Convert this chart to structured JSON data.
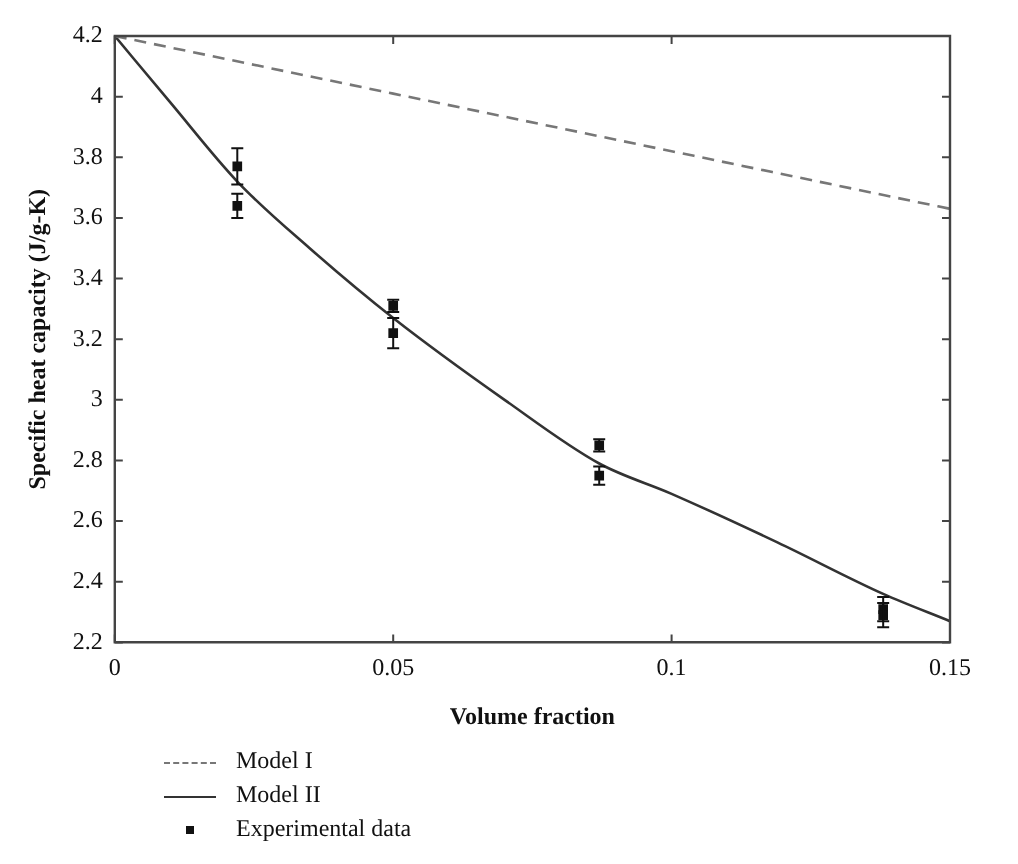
{
  "chart_data": {
    "type": "line",
    "xlabel": "Volume fraction",
    "ylabel": "Specific heat capacity (J/g-K)",
    "xlim": [
      0,
      0.15
    ],
    "xticks": [
      0,
      0.05,
      0.1,
      0.15
    ],
    "ylim": [
      2.2,
      4.2
    ],
    "yticks": [
      2.2,
      2.4,
      2.6,
      2.8,
      3,
      3.2,
      3.4,
      3.6,
      3.8,
      4,
      4.2
    ],
    "grid": false,
    "legend": "bottom",
    "series": [
      {
        "name": "Model I",
        "color": "#777777",
        "line_style": "dashed",
        "marker": "none",
        "x": [
          0,
          0.05,
          0.1,
          0.15
        ],
        "values": [
          4.2,
          4.01,
          3.82,
          3.63
        ]
      },
      {
        "name": "Model II",
        "color": "#333333",
        "line_style": "solid",
        "marker": "none",
        "x": [
          0,
          0.01,
          0.022,
          0.035,
          0.05,
          0.07,
          0.087,
          0.1,
          0.119,
          0.138,
          0.15
        ],
        "values": [
          4.2,
          3.98,
          3.72,
          3.5,
          3.27,
          3.0,
          2.79,
          2.69,
          2.53,
          2.36,
          2.27
        ]
      },
      {
        "name": "Experimental data",
        "type": "scatter",
        "color": "#111111",
        "marker": "square",
        "x": [
          0.022,
          0.022,
          0.05,
          0.05,
          0.087,
          0.087,
          0.138,
          0.138
        ],
        "values": [
          3.77,
          3.64,
          3.31,
          3.22,
          2.85,
          2.75,
          2.31,
          2.29
        ],
        "errors": [
          0.06,
          0.04,
          0.02,
          0.05,
          0.02,
          0.03,
          0.04,
          0.04
        ]
      }
    ]
  }
}
